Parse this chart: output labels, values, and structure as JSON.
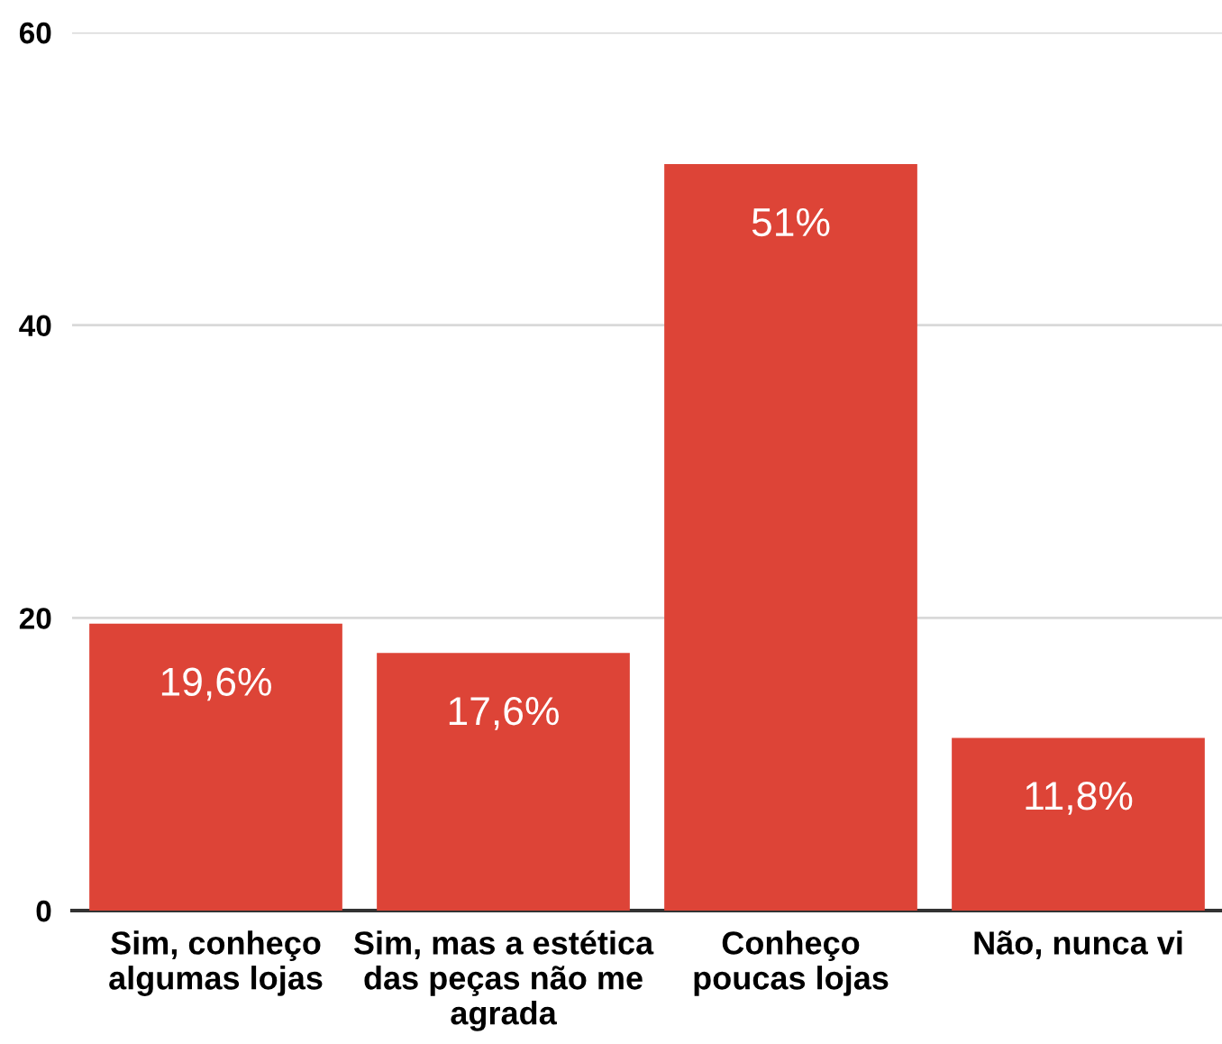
{
  "chart_data": {
    "type": "bar",
    "categories": [
      "Sim, conheço\nalgumas lojas",
      "Sim, mas a estética\ndas peças não me\nagrada",
      "Conheço\npoucas lojas",
      "Não, nunca vi"
    ],
    "values": [
      19.6,
      17.6,
      51,
      11.8
    ],
    "value_labels": [
      "19,6%",
      "17,6%",
      "51%",
      "11,8%"
    ],
    "color": "#dd4437",
    "ylim": [
      0,
      60
    ],
    "yticks": [
      0,
      20,
      40,
      60
    ],
    "grid": "y",
    "legend": false
  }
}
